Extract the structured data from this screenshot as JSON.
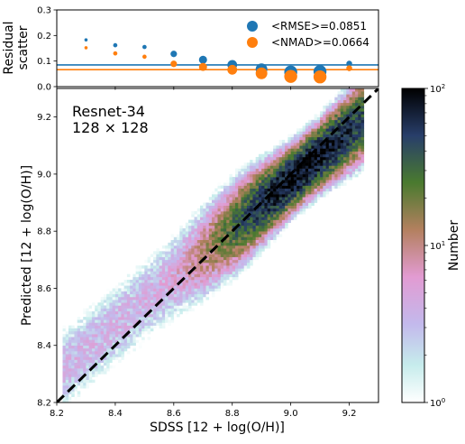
{
  "chart_data": [
    {
      "type": "scatter",
      "panel": "residual-scatter",
      "title": "",
      "ylabel": "Residual\nscatter",
      "xlim": [
        8.2,
        9.3
      ],
      "ylim": [
        0.0,
        0.3
      ],
      "yticks": [
        "0.0",
        "0.1",
        "0.2",
        "0.3"
      ],
      "grid": false,
      "legend_placement": "top-right",
      "series": [
        {
          "name": "<RMSE>=0.0851",
          "color": "#1f77b4",
          "mean_line": 0.0851,
          "x": [
            8.3,
            8.4,
            8.5,
            8.6,
            8.7,
            8.8,
            8.9,
            9.0,
            9.1,
            9.2
          ],
          "y": [
            0.183,
            0.162,
            0.155,
            0.128,
            0.105,
            0.085,
            0.068,
            0.057,
            0.059,
            0.09
          ],
          "marker_size": [
            1,
            1.3,
            1.3,
            2,
            2.5,
            3,
            3.6,
            4,
            4,
            1.8
          ]
        },
        {
          "name": "<NMAD>=0.0664",
          "color": "#ff7f0e",
          "mean_line": 0.0664,
          "x": [
            8.3,
            8.4,
            8.5,
            8.6,
            8.7,
            8.8,
            8.9,
            9.0,
            9.1,
            9.2
          ],
          "y": [
            0.152,
            0.13,
            0.117,
            0.089,
            0.077,
            0.066,
            0.052,
            0.04,
            0.038,
            0.072
          ],
          "marker_size": [
            1,
            1.3,
            1.3,
            2,
            2.5,
            3,
            3.6,
            4,
            4,
            1.8
          ]
        }
      ]
    },
    {
      "type": "heatmap",
      "panel": "density",
      "annotation": [
        "Resnet-34",
        "128 × 128"
      ],
      "xlabel": "SDSS [12 + log(O/H)]",
      "ylabel": "Predicted [12 + log(O/H)]",
      "xlim": [
        8.2,
        9.3
      ],
      "ylim": [
        8.2,
        9.3
      ],
      "xticks": [
        "8.2",
        "8.4",
        "8.6",
        "8.8",
        "9.0",
        "9.2"
      ],
      "yticks": [
        "8.2",
        "8.4",
        "8.6",
        "8.8",
        "9.0",
        "9.2"
      ],
      "grid": false,
      "one_to_one_line": true,
      "colormap": "cubehelix-like (white → cyan → lilac → pink → brown → green → navy → black)",
      "colorbar": {
        "label": "Number",
        "scale": "log",
        "range": [
          1,
          100
        ],
        "ticks": [
          {
            "value": 1,
            "base": "10",
            "exp": "0"
          },
          {
            "value": 10,
            "base": "10",
            "exp": "1"
          },
          {
            "value": 100,
            "base": "10",
            "exp": "2"
          }
        ]
      },
      "density_model": {
        "ridge_slope": 0.85,
        "ridge_intercept_at_8_2": 8.3,
        "scatter_sigma": 0.05,
        "peak_x": 9.05,
        "peak_count": 100,
        "x_range": [
          8.22,
          9.25
        ],
        "note_visible": "highest counts near SDSS 8.95–9.1, Predicted 9.0–9.1"
      }
    }
  ]
}
